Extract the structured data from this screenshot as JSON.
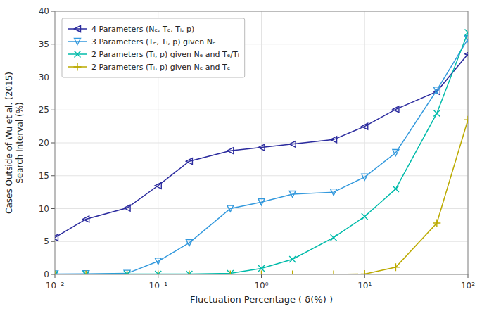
{
  "chart_data": {
    "type": "line",
    "x": [
      0.01,
      0.02,
      0.05,
      0.1,
      0.2,
      0.5,
      1.0,
      2.0,
      5.0,
      10.0,
      20.0,
      50.0,
      100.0
    ],
    "series": [
      {
        "name": "4 Parameters (Nₑ, Tₑ, Tᵢ, p)",
        "color": "#2B2B9E",
        "marker": "triangle-left",
        "values": [
          5.6,
          8.4,
          10.1,
          13.5,
          17.2,
          18.8,
          19.3,
          19.8,
          20.5,
          22.5,
          25.1,
          27.8,
          33.5
        ]
      },
      {
        "name": "3 Parameters (Tₑ, Tᵢ, p) given Nₑ",
        "color": "#3399DD",
        "marker": "triangle-down",
        "values": [
          0.05,
          0.08,
          0.15,
          2.0,
          4.8,
          10.0,
          11.0,
          12.2,
          12.5,
          14.8,
          18.5,
          28.0,
          35.8
        ]
      },
      {
        "name": "2 Parameters (Tᵢ, p) given Nₑ and Tₑ/Tᵢ",
        "color": "#00BBAA",
        "marker": "x",
        "values": [
          0.02,
          0.02,
          0.05,
          0.05,
          0.05,
          0.15,
          0.9,
          2.3,
          5.6,
          8.8,
          13.0,
          24.5,
          36.8
        ]
      },
      {
        "name": "2 Parameters (Tᵢ, p) given Nₑ and Tₑ",
        "color": "#BBAA00",
        "marker": "plus",
        "values": [
          0.0,
          0.0,
          0.0,
          0.0,
          0.0,
          0.0,
          0.0,
          0.0,
          0.0,
          0.05,
          1.1,
          7.8,
          23.5
        ]
      }
    ],
    "xlabel": "Fluctuation Percentage ( δ(%) )",
    "ylabel": "Cases Outside of Wu et al. (2015)\nSearch Interval (%)",
    "log": "x",
    "xlim": [
      0.01,
      100.0
    ],
    "xticks": [
      {
        "value": 0.01,
        "label": "10⁻²"
      },
      {
        "value": 0.1,
        "label": "10⁻¹"
      },
      {
        "value": 1.0,
        "label": "10⁰"
      },
      {
        "value": 10.0,
        "label": "10¹"
      },
      {
        "value": 100.0,
        "label": "10²"
      }
    ],
    "ylim": [
      0,
      40
    ],
    "yticks": [
      0,
      5,
      10,
      15,
      20,
      25,
      30,
      35,
      40
    ],
    "grid": true,
    "legend": "upper left"
  }
}
